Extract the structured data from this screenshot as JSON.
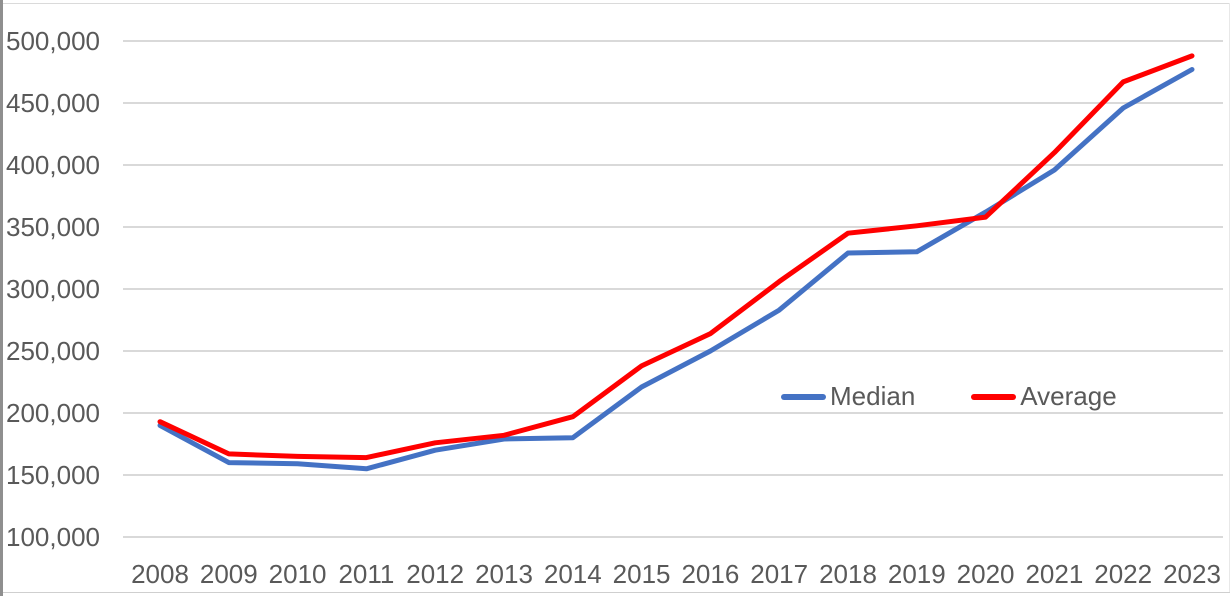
{
  "chart_data": {
    "type": "line",
    "title": "",
    "xlabel": "",
    "ylabel": "",
    "categories": [
      "2008",
      "2009",
      "2010",
      "2011",
      "2012",
      "2013",
      "2014",
      "2015",
      "2016",
      "2017",
      "2018",
      "2019",
      "2020",
      "2021",
      "2022",
      "2023"
    ],
    "series": [
      {
        "name": "Median",
        "color": "#4472C4",
        "values": [
          190000,
          160000,
          159000,
          155000,
          170000,
          179000,
          180000,
          221000,
          250000,
          283000,
          329000,
          330000,
          362000,
          396000,
          446000,
          477000
        ]
      },
      {
        "name": "Average",
        "color": "#FF0000",
        "values": [
          193000,
          167000,
          165000,
          164000,
          176000,
          182000,
          197000,
          238000,
          264000,
          306000,
          345000,
          351000,
          358000,
          410000,
          467000,
          488000
        ]
      }
    ],
    "ylim": [
      100000,
      500000
    ],
    "ytick_step": 50000,
    "yticks": [
      {
        "value": 500000,
        "label": "500,000"
      },
      {
        "value": 450000,
        "label": "450,000"
      },
      {
        "value": 400000,
        "label": "400,000"
      },
      {
        "value": 350000,
        "label": "350,000"
      },
      {
        "value": 300000,
        "label": "300,000"
      },
      {
        "value": 250000,
        "label": "250,000"
      },
      {
        "value": 200000,
        "label": "200,000"
      },
      {
        "value": 150000,
        "label": "150,000"
      },
      {
        "value": 100000,
        "label": "100,000"
      }
    ],
    "grid": true,
    "legend_position": "inside-right"
  },
  "colors": {
    "axis_text": "#595959",
    "gridline": "#D9D9D9",
    "background": "#FFFFFF"
  }
}
